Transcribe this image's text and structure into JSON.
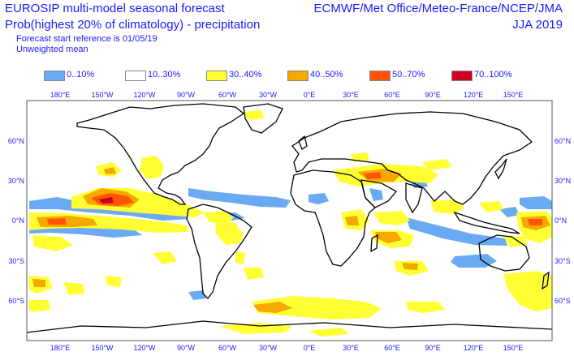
{
  "header": {
    "title_line1": "EUROSIP multi-model seasonal forecast",
    "title_line2": "Prob(highest 20% of climatology) - precipitation",
    "title_line3": "Forecast start reference is 01/05/19",
    "title_line4": "Unweighted mean",
    "models": "ECMWF/Met Office/Meteo-France/NCEP/JMA",
    "season": "JJA 2019"
  },
  "legend": [
    {
      "label": "0..10%",
      "color": "#6aaaf2"
    },
    {
      "label": "10..30%",
      "color": "#ffffff"
    },
    {
      "label": "30..40%",
      "color": "#ffff33"
    },
    {
      "label": "40..50%",
      "color": "#f5a800"
    },
    {
      "label": "50..70%",
      "color": "#ff5500"
    },
    {
      "label": "70..100%",
      "color": "#cc0022"
    }
  ],
  "axes": {
    "lon_ticks": [
      "180°E",
      "150°W",
      "120°W",
      "90°W",
      "60°W",
      "30°W",
      "0°E",
      "30°E",
      "60°E",
      "90°E",
      "120°E",
      "150°E"
    ],
    "lat_ticks": [
      "60°N",
      "30°N",
      "0°N",
      "30°S",
      "60°S"
    ]
  }
}
